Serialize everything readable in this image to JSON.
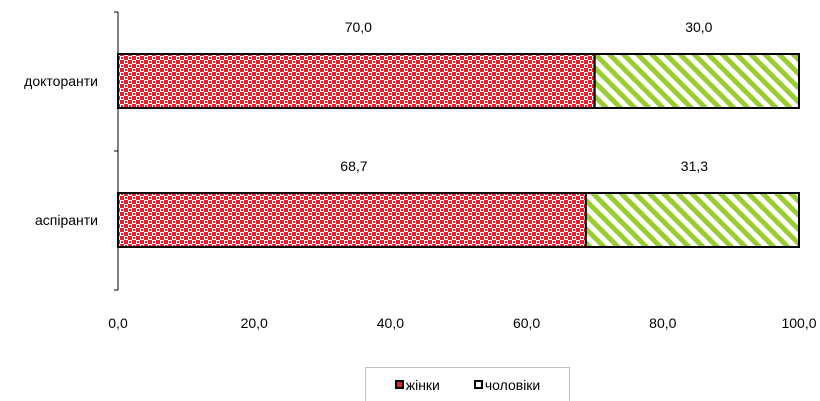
{
  "chart_data": {
    "type": "bar",
    "orientation": "horizontal",
    "stacked": true,
    "categories": [
      "докторанти",
      "аспіранти"
    ],
    "series": [
      {
        "name": "жінки",
        "values": [
          70.0,
          68.7
        ],
        "labels": [
          "70,0",
          "68,7"
        ],
        "color": "#e8212a",
        "pattern": "checkered"
      },
      {
        "name": "чоловіки",
        "values": [
          30.0,
          31.3
        ],
        "labels": [
          "30,0",
          "31,3"
        ],
        "color": "#9acd32",
        "pattern": "diagonal-stripes"
      }
    ],
    "xlim": [
      0,
      100
    ],
    "xticks": [
      0,
      20,
      40,
      60,
      80,
      100
    ],
    "xtick_labels": [
      "0,0",
      "20,0",
      "40,0",
      "60,0",
      "80,0",
      "100,0"
    ],
    "legend_position": "bottom",
    "grid": false
  }
}
